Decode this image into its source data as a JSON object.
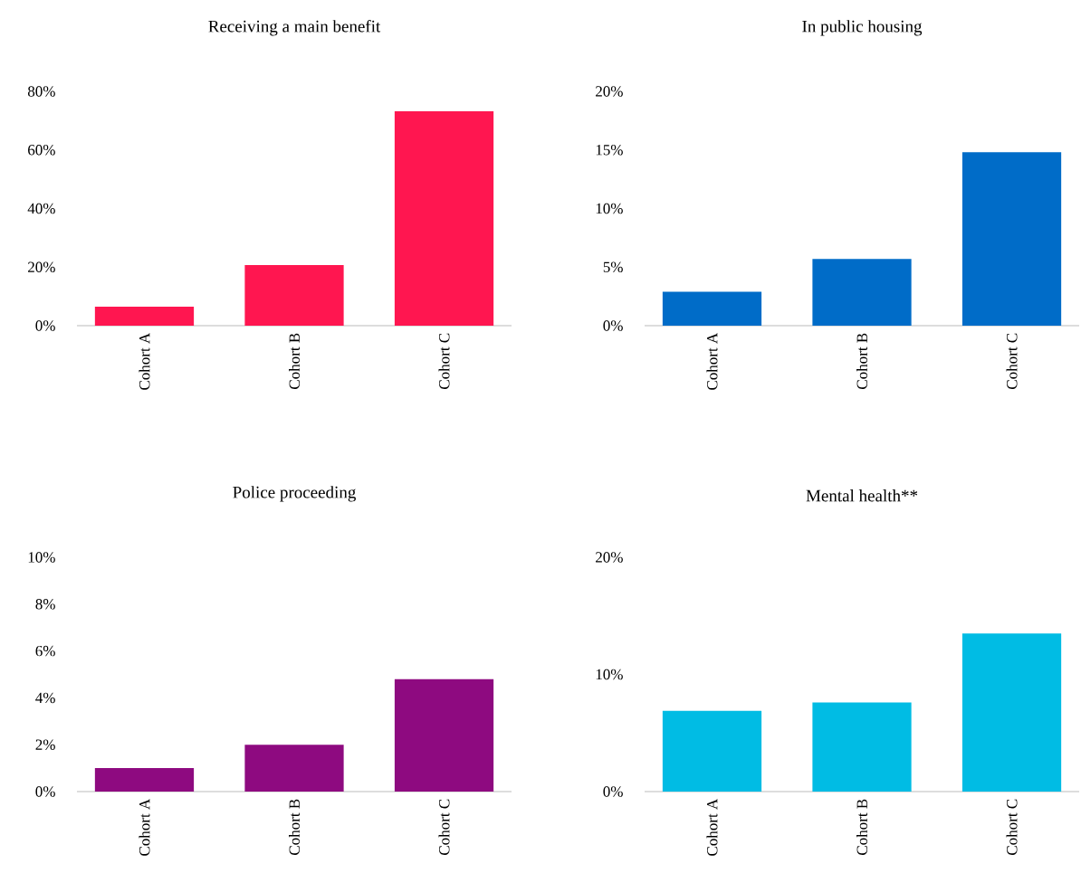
{
  "chart_data": [
    {
      "type": "bar",
      "title": "Receiving a main benefit",
      "categories": [
        "Cohort A",
        "Cohort B",
        "Cohort C"
      ],
      "values": [
        6.5,
        20.7,
        73.2
      ],
      "color": "#ff1650",
      "ylim": [
        0,
        80
      ],
      "yticks": [
        {
          "value": 0,
          "label": "0%"
        },
        {
          "value": 20,
          "label": "20%"
        },
        {
          "value": 40,
          "label": "40%"
        },
        {
          "value": 60,
          "label": "60%"
        },
        {
          "value": 80,
          "label": "80%"
        }
      ]
    },
    {
      "type": "bar",
      "title": "In public housing",
      "categories": [
        "Cohort A",
        "Cohort B",
        "Cohort C"
      ],
      "values": [
        2.9,
        5.7,
        14.8
      ],
      "color": "#006cc8",
      "ylim": [
        0,
        20
      ],
      "yticks": [
        {
          "value": 0,
          "label": "0%"
        },
        {
          "value": 5,
          "label": "5%"
        },
        {
          "value": 10,
          "label": "10%"
        },
        {
          "value": 15,
          "label": "15%"
        },
        {
          "value": 20,
          "label": "20%"
        }
      ]
    },
    {
      "type": "bar",
      "title": "Police proceeding",
      "categories": [
        "Cohort A",
        "Cohort B",
        "Cohort C"
      ],
      "values": [
        1.0,
        2.0,
        4.8
      ],
      "color": "#8e0a80",
      "ylim": [
        0,
        10
      ],
      "yticks": [
        {
          "value": 0,
          "label": "0%"
        },
        {
          "value": 2,
          "label": "2%"
        },
        {
          "value": 4,
          "label": "4%"
        },
        {
          "value": 6,
          "label": "6%"
        },
        {
          "value": 8,
          "label": "8%"
        },
        {
          "value": 10,
          "label": "10%"
        }
      ]
    },
    {
      "type": "bar",
      "title": "Mental health**",
      "categories": [
        "Cohort A",
        "Cohort B",
        "Cohort C"
      ],
      "values": [
        6.9,
        7.6,
        13.5
      ],
      "color": "#00bce4",
      "ylim": [
        0,
        20
      ],
      "yticks": [
        {
          "value": 0,
          "label": "0%"
        },
        {
          "value": 10,
          "label": "10%"
        },
        {
          "value": 20,
          "label": "20%"
        }
      ]
    }
  ]
}
